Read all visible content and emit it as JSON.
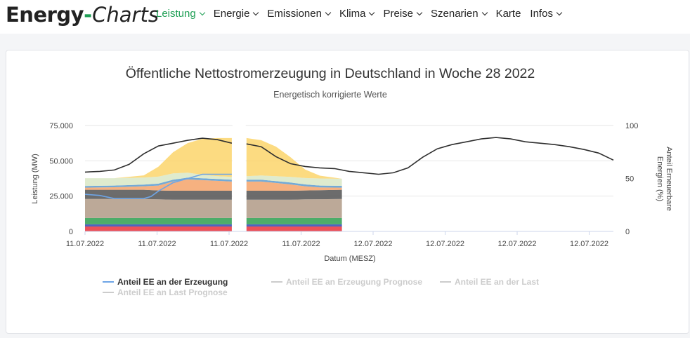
{
  "header": {
    "logo_part1": "Energy",
    "logo_dash": "-",
    "logo_part2": "Charts",
    "nav": [
      {
        "label": "Leistung",
        "dropdown": true,
        "active": true
      },
      {
        "label": "Energie",
        "dropdown": true,
        "active": false
      },
      {
        "label": "Emissionen",
        "dropdown": true,
        "active": false
      },
      {
        "label": "Klima",
        "dropdown": true,
        "active": false
      },
      {
        "label": "Preise",
        "dropdown": true,
        "active": false
      },
      {
        "label": "Szenarien",
        "dropdown": true,
        "active": false
      },
      {
        "label": "Karte",
        "dropdown": false,
        "active": false
      },
      {
        "label": "Infos",
        "dropdown": true,
        "active": false
      }
    ]
  },
  "colors": {
    "accent": "#1f9f55"
  },
  "chart_data": {
    "type": "area",
    "title": "Öffentliche Nettostromerzeugung in Deutschland in Woche 28 2022",
    "subtitle": "Energetisch korrigierte Werte",
    "xlabel": "Datum (MESZ)",
    "ylabel": "Leistung (MW)",
    "y2label": "Anteil Erneuerbare Energien (%)",
    "ylim": [
      0,
      75000
    ],
    "y2lim": [
      0,
      100
    ],
    "yticks": [
      "0",
      "25.000",
      "50.000",
      "75.000"
    ],
    "y2ticks": [
      "0",
      "50",
      "100"
    ],
    "xticks": [
      "11.07.2022",
      "11.07.2022",
      "11.07.2022",
      "11.07.2022",
      "12.07.2022",
      "12.07.2022",
      "12.07.2022",
      "12.07.2022"
    ],
    "grid": true,
    "x_range_hours": [
      0,
      36
    ],
    "gap_hours": [
      10,
      11
    ],
    "stack_end_hours": 17.5,
    "stack_hours": [
      0,
      2,
      4,
      5,
      6,
      7,
      8,
      9,
      10,
      11,
      12,
      13,
      14,
      15,
      16,
      17.5
    ],
    "stack_series": [
      {
        "color": "#e8323c",
        "values": [
          3500,
          3500,
          3500,
          3500,
          3500,
          3500,
          3500,
          3500,
          3500,
          3500,
          3500,
          3500,
          3500,
          3500,
          3500,
          3500
        ]
      },
      {
        "color": "#2f49b5",
        "values": [
          1500,
          1500,
          1500,
          1500,
          1500,
          1500,
          1500,
          1500,
          1500,
          1500,
          1500,
          1500,
          1500,
          1500,
          1500,
          1500
        ]
      },
      {
        "color": "#2e9e4f",
        "values": [
          4500,
          4500,
          4500,
          4500,
          4500,
          4500,
          4500,
          4500,
          4500,
          4500,
          4500,
          4500,
          4500,
          4500,
          4500,
          4500
        ]
      },
      {
        "color": "#b09a86",
        "values": [
          13500,
          13500,
          13500,
          13200,
          13000,
          13000,
          13000,
          13000,
          13000,
          13000,
          13000,
          13000,
          13000,
          13200,
          13300,
          13500
        ]
      },
      {
        "color": "#525252",
        "values": [
          6500,
          6500,
          6500,
          6300,
          6300,
          6300,
          6300,
          6300,
          6300,
          6300,
          6300,
          6300,
          6300,
          6300,
          6400,
          6500
        ]
      },
      {
        "color": "#f4a36a",
        "values": [
          1500,
          1800,
          2500,
          3500,
          6500,
          8000,
          7500,
          7000,
          6500,
          6500,
          6500,
          5500,
          4500,
          3000,
          2000,
          1500
        ]
      },
      {
        "color": "#5b9bd0",
        "values": [
          1200,
          1200,
          1200,
          1300,
          1300,
          1300,
          1300,
          1300,
          1300,
          1300,
          1300,
          1300,
          1300,
          1300,
          1300,
          1300
        ]
      },
      {
        "color": "#d9e8c6",
        "values": [
          5500,
          5200,
          5000,
          5000,
          4500,
          3500,
          2500,
          2000,
          2000,
          2500,
          3000,
          3500,
          4000,
          4500,
          5000,
          5000
        ]
      },
      {
        "color": "#fcd56b",
        "values": [
          0,
          0,
          1500,
          7000,
          15000,
          21000,
          25500,
          27000,
          27500,
          27000,
          25000,
          21000,
          14000,
          6000,
          2000,
          0
        ]
      }
    ],
    "load_hours": [
      0,
      1,
      2,
      3,
      4,
      5,
      6,
      7,
      8,
      9,
      10,
      11,
      12,
      13,
      14,
      15,
      16,
      17,
      18,
      19,
      20,
      21,
      22,
      23,
      24,
      25,
      26,
      27,
      28,
      29,
      30,
      31,
      32,
      33,
      34,
      35,
      36
    ],
    "load_values": [
      42000,
      42500,
      43500,
      47500,
      55000,
      60500,
      62500,
      64500,
      66000,
      65000,
      62500,
      62000,
      60000,
      53000,
      48000,
      46000,
      45000,
      44500,
      42500,
      41500,
      40500,
      41500,
      45000,
      52500,
      58500,
      61500,
      63500,
      65500,
      66500,
      65500,
      63500,
      62500,
      61500,
      60000,
      58000,
      55500,
      50500
    ],
    "load_color": "#2f2f2f",
    "ee_share_series": {
      "name": "Anteil EE an der Erzeugung",
      "color": "#6ea5e6",
      "hours": [
        0,
        1,
        2,
        3,
        4,
        4.5,
        5,
        6,
        7,
        7.5,
        8,
        10
      ],
      "values": [
        35,
        34,
        31,
        31,
        31,
        33,
        38,
        46,
        50,
        52,
        54,
        54
      ]
    },
    "legend": [
      {
        "name": "Anteil EE an der Erzeugung",
        "color": "#6ea5e6",
        "active": true
      },
      {
        "name": "Anteil EE an Erzeugung Prognose",
        "color": "#c8c8c8",
        "active": false
      },
      {
        "name": "Anteil EE an der Last",
        "color": "#c8c8c8",
        "active": false
      },
      {
        "name": "Anteil EE an Last Prognose",
        "color": "#c8c8c8",
        "active": false
      }
    ],
    "legend_position": "bottom-left"
  }
}
